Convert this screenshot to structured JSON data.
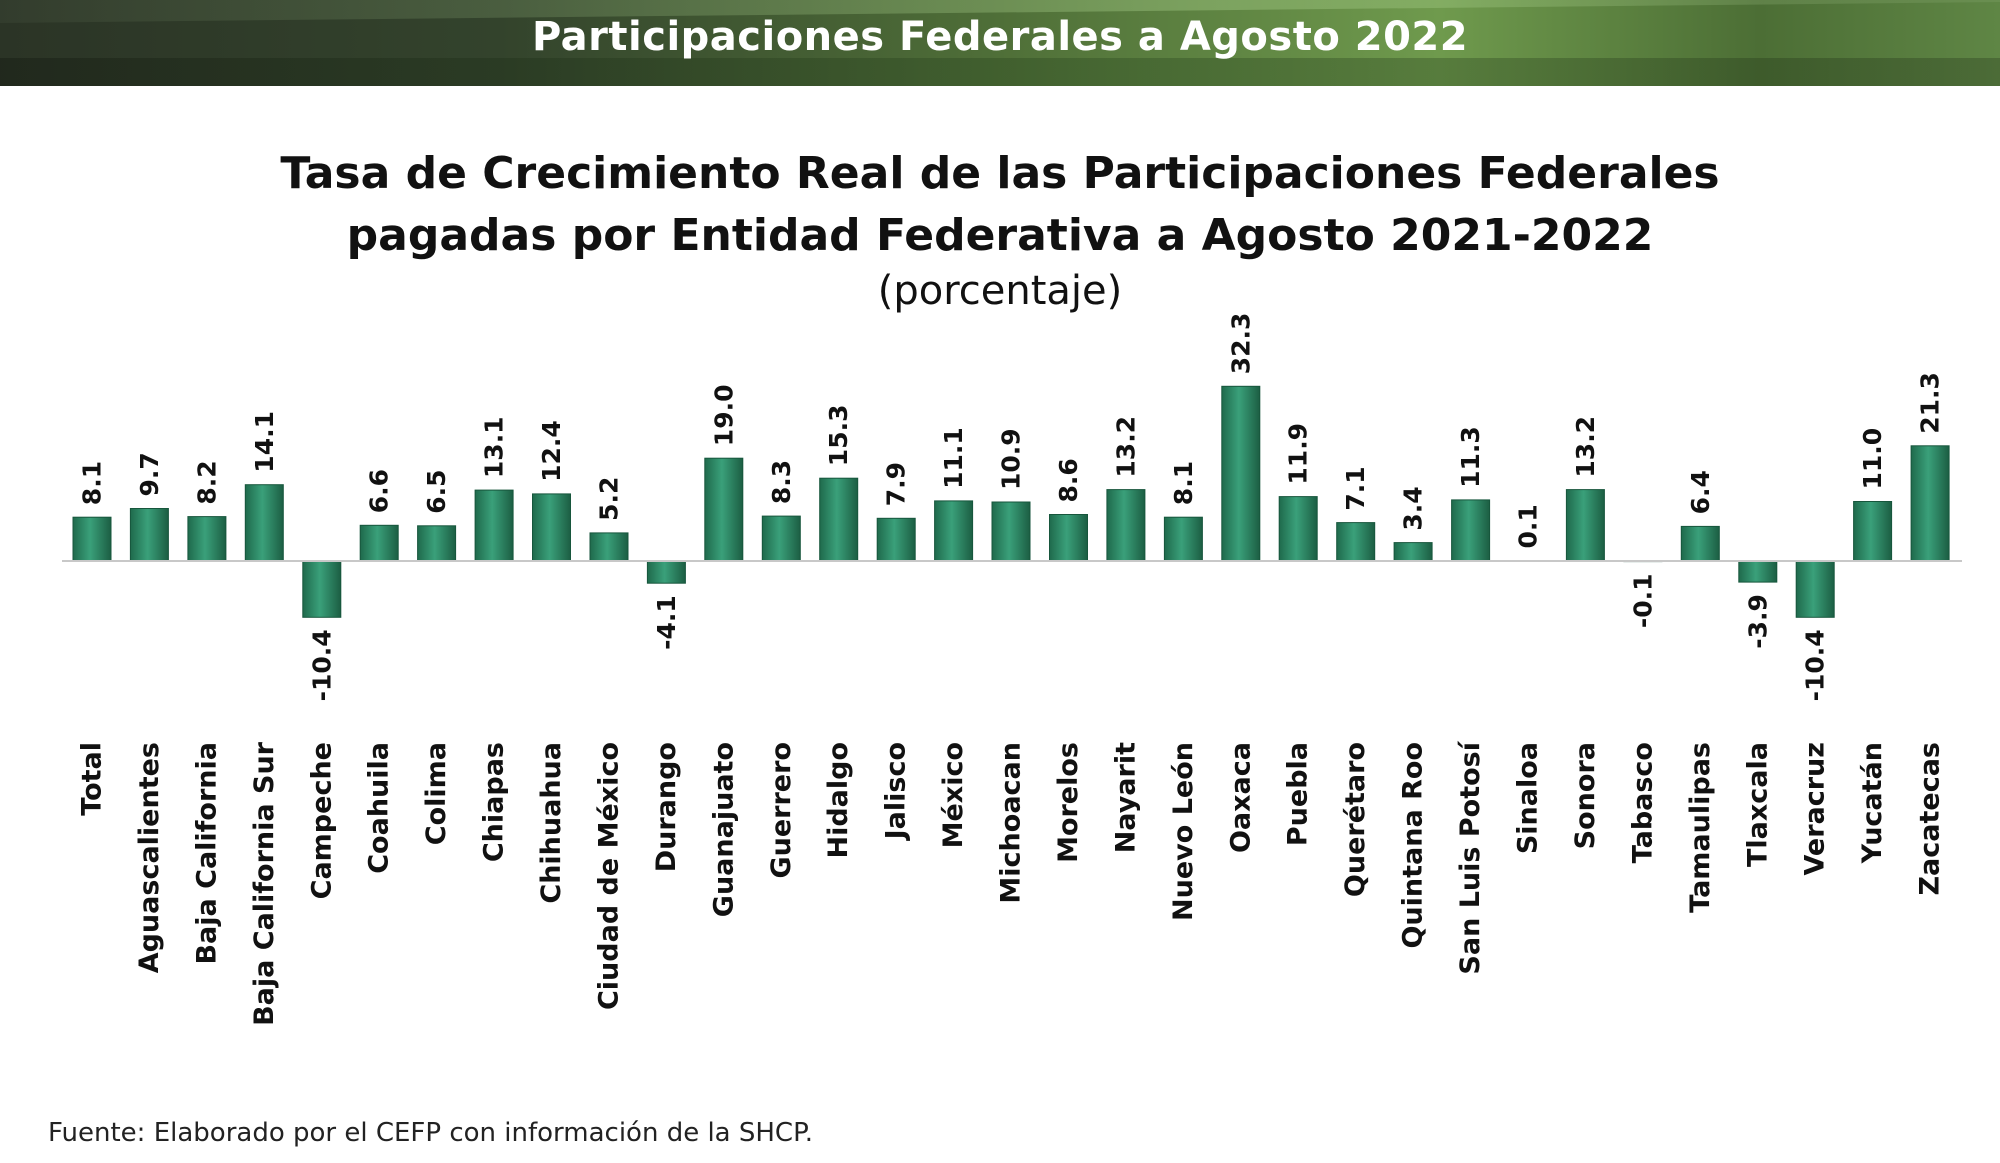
{
  "banner": {
    "title": "Participaciones Federales a Agosto 2022"
  },
  "chart_data": {
    "type": "bar",
    "title": "Tasa de Crecimiento Real de las Participaciones Federales pagadas por Entidad Federativa a Agosto 2021-2022",
    "title_lines": [
      "Tasa de Crecimiento Real de las Participaciones Federales",
      "pagadas por Entidad Federativa a Agosto 2021-2022"
    ],
    "subtitle": "(porcentaje)",
    "xlabel": "",
    "ylabel": "",
    "ylim": [
      -10.4,
      32.3
    ],
    "grid": false,
    "legend": "none",
    "bar_color": "#2e8b66",
    "categories": [
      "Total",
      "Aguascalientes",
      "Baja California",
      "Baja California Sur",
      "Campeche",
      "Coahuila",
      "Colima",
      "Chiapas",
      "Chihuahua",
      "Ciudad de México",
      "Durango",
      "Guanajuato",
      "Guerrero",
      "Hidalgo",
      "Jalisco",
      "México",
      "Michoacan",
      "Morelos",
      "Nayarit",
      "Nuevo León",
      "Oaxaca",
      "Puebla",
      "Querétaro",
      "Quintana Roo",
      "San Luis Potosí",
      "Sinaloa",
      "Sonora",
      "Tabasco",
      "Tamaulipas",
      "Tlaxcala",
      "Veracruz",
      "Yucatán",
      "Zacatecas"
    ],
    "values": [
      8.1,
      9.7,
      8.2,
      14.1,
      -10.4,
      6.6,
      6.5,
      13.1,
      12.4,
      5.2,
      -4.1,
      19.0,
      8.3,
      15.3,
      7.9,
      11.1,
      10.9,
      8.6,
      13.2,
      8.1,
      32.3,
      11.9,
      7.1,
      3.4,
      11.3,
      0.1,
      13.2,
      -0.1,
      6.4,
      -3.9,
      -10.4,
      11.0,
      21.3
    ],
    "data_labels": [
      "8.1",
      "9.7",
      "8.2",
      "14.1",
      "-10.4",
      "6.6",
      "6.5",
      "13.1",
      "12.4",
      "5.2",
      "-4.1",
      "19.0",
      "8.3",
      "15.3",
      "7.9",
      "11.1",
      "10.9",
      "8.6",
      "13.2",
      "8.1",
      "32.3",
      "11.9",
      "7.1",
      "3.4",
      "11.3",
      "0.1",
      "13.2",
      "-0.1",
      "6.4",
      "-3.9",
      "-10.4",
      "11.0",
      "21.3"
    ]
  },
  "source_note": "Fuente: Elaborado por el CEFP con información de la SHCP."
}
